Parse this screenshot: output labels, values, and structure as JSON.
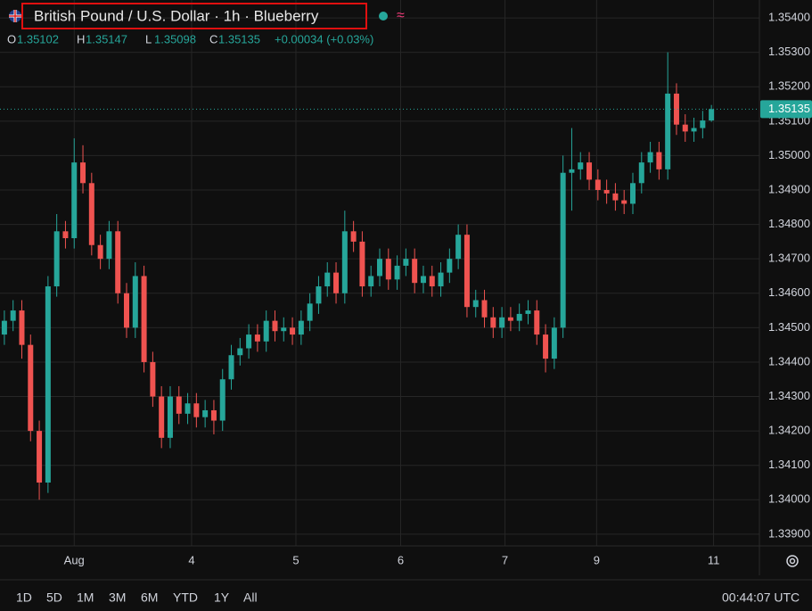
{
  "header": {
    "title": "British Pound / U.S. Dollar · 1h · Blueberry",
    "ohlc": [
      {
        "key": "O",
        "value": "1.35102"
      },
      {
        "key": "H",
        "value": "1.35147"
      },
      {
        "key": "L",
        "value": "1.35098"
      },
      {
        "key": "C",
        "value": "1.35135"
      }
    ],
    "change": "+0.00034 (+0.03%)"
  },
  "chart_data": {
    "type": "candlestick",
    "up_color": "#26a69a",
    "down_color": "#ef5350",
    "grid": true,
    "x": [
      1,
      3,
      5,
      7,
      9,
      11,
      13,
      15,
      17,
      19,
      21,
      23,
      25,
      27,
      29,
      31,
      33,
      35,
      37,
      39,
      41,
      43,
      45,
      47,
      49,
      51,
      53,
      55,
      57,
      59,
      61,
      63,
      65,
      67,
      69,
      71,
      73,
      75,
      77,
      79,
      81,
      83,
      85,
      87,
      89,
      91,
      93,
      95,
      97,
      99,
      101,
      103,
      105,
      107,
      109,
      111,
      113,
      115,
      117,
      119,
      121,
      123,
      125,
      127,
      129,
      131,
      133,
      135,
      137,
      139,
      141,
      143,
      145,
      147,
      149,
      151,
      153,
      155,
      157,
      159,
      161,
      163
    ],
    "open": [
      1.3448,
      1.3452,
      1.3455,
      1.3445,
      1.342,
      1.3405,
      1.3462,
      1.3478,
      1.3476,
      1.3498,
      1.3492,
      1.3474,
      1.347,
      1.3478,
      1.346,
      1.345,
      1.3465,
      1.344,
      1.343,
      1.3418,
      1.343,
      1.3425,
      1.3428,
      1.3424,
      1.3426,
      1.3423,
      1.3435,
      1.3442,
      1.3444,
      1.3448,
      1.3446,
      1.3452,
      1.3449,
      1.345,
      1.3448,
      1.3452,
      1.3457,
      1.3462,
      1.3466,
      1.346,
      1.3478,
      1.3475,
      1.3462,
      1.3465,
      1.347,
      1.3464,
      1.3468,
      1.347,
      1.3463,
      1.3465,
      1.3462,
      1.3466,
      1.347,
      1.3477,
      1.3456,
      1.3458,
      1.3453,
      1.345,
      1.3453,
      1.3452,
      1.3454,
      1.3455,
      1.3448,
      1.3441,
      1.345,
      1.3495,
      1.3496,
      1.3498,
      1.3493,
      1.349,
      1.3489,
      1.3487,
      1.3486,
      1.3492,
      1.3498,
      1.3501,
      1.3496,
      1.3518,
      1.3509,
      1.3507,
      1.3508,
      1.35102
    ],
    "high": [
      1.3455,
      1.3458,
      1.3458,
      1.3448,
      1.3423,
      1.3465,
      1.3483,
      1.3481,
      1.3505,
      1.3503,
      1.3495,
      1.3477,
      1.3481,
      1.3481,
      1.3463,
      1.3469,
      1.3468,
      1.3443,
      1.3433,
      1.3433,
      1.3433,
      1.3431,
      1.3431,
      1.3429,
      1.3429,
      1.3438,
      1.3445,
      1.3447,
      1.3451,
      1.3451,
      1.3455,
      1.3455,
      1.3453,
      1.3453,
      1.3455,
      1.346,
      1.3465,
      1.3469,
      1.3469,
      1.3484,
      1.3481,
      1.3478,
      1.3468,
      1.3473,
      1.3473,
      1.3471,
      1.3473,
      1.3473,
      1.3468,
      1.3468,
      1.3469,
      1.3473,
      1.348,
      1.348,
      1.3461,
      1.3461,
      1.3456,
      1.3456,
      1.3456,
      1.3457,
      1.3458,
      1.3458,
      1.3451,
      1.3453,
      1.35,
      1.3508,
      1.3501,
      1.3501,
      1.3496,
      1.3493,
      1.3492,
      1.349,
      1.3495,
      1.3501,
      1.3504,
      1.3504,
      1.353,
      1.3521,
      1.3512,
      1.3511,
      1.3513,
      1.35147
    ],
    "low": [
      1.3445,
      1.3449,
      1.3441,
      1.3417,
      1.34,
      1.3402,
      1.3459,
      1.3473,
      1.3473,
      1.3489,
      1.3471,
      1.3467,
      1.3467,
      1.3457,
      1.3447,
      1.3447,
      1.3437,
      1.3427,
      1.3415,
      1.3415,
      1.3422,
      1.3422,
      1.3421,
      1.3421,
      1.3419,
      1.342,
      1.3432,
      1.3439,
      1.3441,
      1.3443,
      1.3443,
      1.3446,
      1.3446,
      1.3445,
      1.3445,
      1.3449,
      1.3454,
      1.3459,
      1.3457,
      1.3457,
      1.3472,
      1.3459,
      1.3459,
      1.3462,
      1.3461,
      1.3461,
      1.3465,
      1.346,
      1.346,
      1.3459,
      1.3459,
      1.3463,
      1.3467,
      1.3453,
      1.3453,
      1.345,
      1.3447,
      1.3447,
      1.3449,
      1.3449,
      1.3451,
      1.3445,
      1.3437,
      1.3438,
      1.3447,
      1.3484,
      1.3493,
      1.349,
      1.3487,
      1.3486,
      1.3484,
      1.3483,
      1.3483,
      1.3489,
      1.3495,
      1.3493,
      1.3493,
      1.3506,
      1.3504,
      1.3504,
      1.3505,
      1.35098
    ],
    "close": [
      1.3452,
      1.3455,
      1.3445,
      1.342,
      1.3405,
      1.3462,
      1.3478,
      1.3476,
      1.3498,
      1.3492,
      1.3474,
      1.347,
      1.3478,
      1.346,
      1.345,
      1.3465,
      1.344,
      1.343,
      1.3418,
      1.343,
      1.3425,
      1.3428,
      1.3424,
      1.3426,
      1.3423,
      1.3435,
      1.3442,
      1.3444,
      1.3448,
      1.3446,
      1.3452,
      1.3449,
      1.345,
      1.3448,
      1.3452,
      1.3457,
      1.3462,
      1.3466,
      1.346,
      1.3478,
      1.3475,
      1.3462,
      1.3465,
      1.347,
      1.3464,
      1.3468,
      1.347,
      1.3463,
      1.3465,
      1.3462,
      1.3466,
      1.347,
      1.3477,
      1.3456,
      1.3458,
      1.3453,
      1.345,
      1.3453,
      1.3452,
      1.3454,
      1.3455,
      1.3448,
      1.3441,
      1.345,
      1.3495,
      1.3496,
      1.3498,
      1.3493,
      1.349,
      1.3489,
      1.3487,
      1.3486,
      1.3492,
      1.3498,
      1.3501,
      1.3496,
      1.3518,
      1.3509,
      1.3507,
      1.3508,
      1.35102,
      1.35135
    ],
    "xlim": [
      0,
      174
    ],
    "xticks": [
      {
        "value": 17,
        "label": "Aug"
      },
      {
        "value": 43.9,
        "label": "4"
      },
      {
        "value": 67.8,
        "label": "5"
      },
      {
        "value": 91.8,
        "label": "6"
      },
      {
        "value": 115.7,
        "label": "7"
      },
      {
        "value": 136.7,
        "label": "9"
      },
      {
        "value": 163.5,
        "label": "11"
      }
    ],
    "ylim": [
      1.33866,
      1.35452
    ],
    "yticks": [
      {
        "value": 1.354,
        "label": "1.35400"
      },
      {
        "value": 1.353,
        "label": "1.35300"
      },
      {
        "value": 1.352,
        "label": "1.35200"
      },
      {
        "value": 1.351,
        "label": "1.35100"
      },
      {
        "value": 1.35,
        "label": "1.35000"
      },
      {
        "value": 1.349,
        "label": "1.34900"
      },
      {
        "value": 1.348,
        "label": "1.34800"
      },
      {
        "value": 1.347,
        "label": "1.34700"
      },
      {
        "value": 1.346,
        "label": "1.34600"
      },
      {
        "value": 1.345,
        "label": "1.34500"
      },
      {
        "value": 1.344,
        "label": "1.34400"
      },
      {
        "value": 1.343,
        "label": "1.34300"
      },
      {
        "value": 1.342,
        "label": "1.34200"
      },
      {
        "value": 1.341,
        "label": "1.34100"
      },
      {
        "value": 1.34,
        "label": "1.34000"
      },
      {
        "value": 1.339,
        "label": "1.33900"
      }
    ],
    "last_price": {
      "value": 1.35135,
      "label": "1.35135"
    }
  },
  "toolbar": {
    "ranges": [
      "1D",
      "5D",
      "1M",
      "3M",
      "6M",
      "YTD",
      "1Y",
      "All"
    ],
    "clock": "00:44:07 UTC"
  }
}
